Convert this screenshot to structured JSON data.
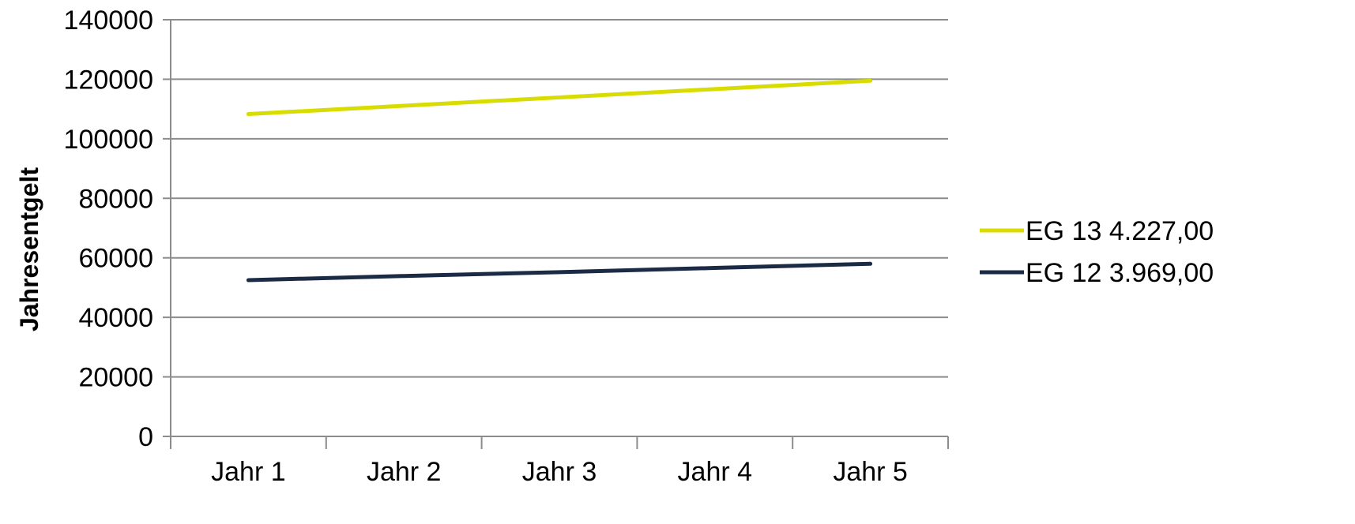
{
  "chart_data": {
    "type": "line",
    "title": "",
    "xlabel": "",
    "ylabel": "Jahresentgelt",
    "categories": [
      "Jahr 1",
      "Jahr 2",
      "Jahr 3",
      "Jahr 4",
      "Jahr 5"
    ],
    "ylim": [
      0,
      140000
    ],
    "yticks": [
      0,
      20000,
      40000,
      60000,
      80000,
      100000,
      120000,
      140000
    ],
    "grid": true,
    "legend_position": "right",
    "series": [
      {
        "name": "EG 13 4.227,00",
        "color": "#d8dc00",
        "values": [
          108300,
          111100,
          113900,
          116700,
          119500
        ]
      },
      {
        "name": "EG 12 3.969,00",
        "color": "#1b2a45",
        "values": [
          52500,
          53900,
          55200,
          56600,
          58000
        ]
      }
    ]
  }
}
